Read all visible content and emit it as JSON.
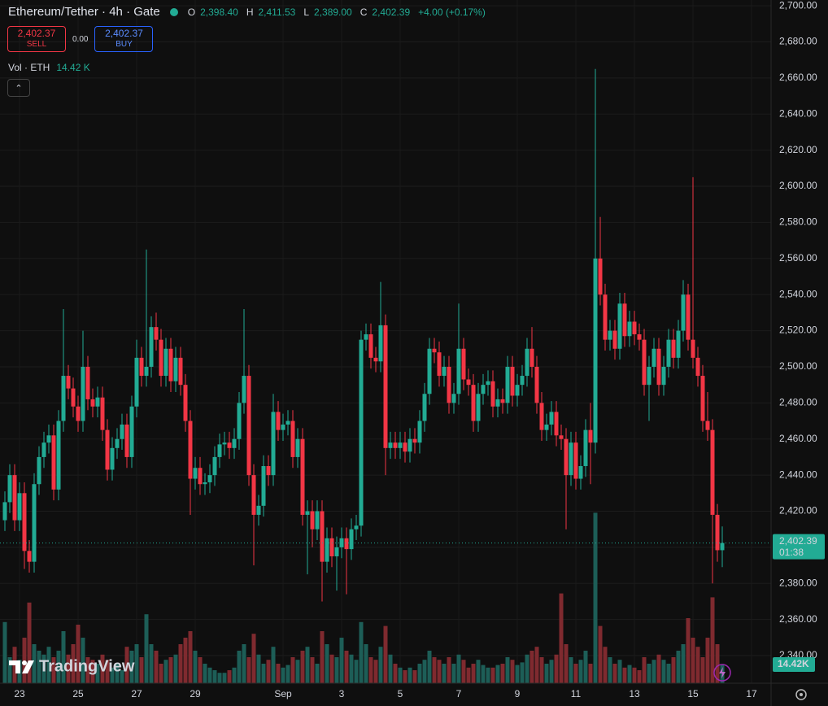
{
  "header": {
    "symbol": "Ethereum/Tether · 4h · Gate",
    "ohlc": [
      {
        "key": "O",
        "value": "2,398.40"
      },
      {
        "key": "H",
        "value": "2,411.53"
      },
      {
        "key": "L",
        "value": "2,389.00"
      },
      {
        "key": "C",
        "value": "2,402.39"
      }
    ],
    "change": "+4.00 (+0.17%)",
    "sell_price": "2,402.37",
    "sell": "SELL",
    "spread": "0.00",
    "buy_price": "2,402.37",
    "buy": "BUY",
    "volume_title": "Vol · ETH",
    "volume_value": "14.42 K"
  },
  "logo": "TradingView",
  "chart_data": {
    "type": "candlestick",
    "up_color": "#22ab94",
    "down_color": "#f23645",
    "up_volume_color": "#1d5e57",
    "down_volume_color": "#7f2a2f",
    "grid": true,
    "xlim": [
      -1,
      157
    ],
    "xticks": [
      {
        "value": 3,
        "label": "23"
      },
      {
        "value": 15,
        "label": "25"
      },
      {
        "value": 27,
        "label": "27"
      },
      {
        "value": 39,
        "label": "29"
      },
      {
        "value": 57,
        "label": "Sep"
      },
      {
        "value": 69,
        "label": "3"
      },
      {
        "value": 81,
        "label": "5"
      },
      {
        "value": 93,
        "label": "7"
      },
      {
        "value": 105,
        "label": "9"
      },
      {
        "value": 117,
        "label": "11"
      },
      {
        "value": 129,
        "label": "13"
      },
      {
        "value": 141,
        "label": "15"
      },
      {
        "value": 153,
        "label": "17"
      }
    ],
    "ylim": [
      2324.7,
      2703.2
    ],
    "yticks": [
      {
        "value": 2340,
        "label": "2,340.00"
      },
      {
        "value": 2360,
        "label": "2,360.00"
      },
      {
        "value": 2380,
        "label": "2,380.00"
      },
      {
        "value": 2400,
        "label": "2,400.00"
      },
      {
        "value": 2420,
        "label": "2,420.00"
      },
      {
        "value": 2440,
        "label": "2,440.00"
      },
      {
        "value": 2460,
        "label": "2,460.00"
      },
      {
        "value": 2480,
        "label": "2,480.00"
      },
      {
        "value": 2500,
        "label": "2,500.00"
      },
      {
        "value": 2520,
        "label": "2,520.00"
      },
      {
        "value": 2540,
        "label": "2,540.00"
      },
      {
        "value": 2560,
        "label": "2,560.00"
      },
      {
        "value": 2580,
        "label": "2,580.00"
      },
      {
        "value": 2600,
        "label": "2,600.00"
      },
      {
        "value": 2620,
        "label": "2,620.00"
      },
      {
        "value": 2640,
        "label": "2,640.00"
      },
      {
        "value": 2660,
        "label": "2,660.00"
      },
      {
        "value": 2680,
        "label": "2,680.00"
      },
      {
        "value": 2700,
        "label": "2,700.00"
      }
    ],
    "vlim": [
      0,
      150
    ],
    "price_tag": {
      "label": "2,402.39",
      "countdown": "01:38"
    },
    "volume_tag": "14.42K",
    "open": [
      2415,
      2425,
      2440,
      2415,
      2430,
      2398,
      2392,
      2435,
      2450,
      2458,
      2462,
      2432,
      2470,
      2495,
      2488,
      2478,
      2470,
      2500,
      2482,
      2478,
      2483,
      2465,
      2443,
      2455,
      2460,
      2468,
      2450,
      2478,
      2505,
      2495,
      2500,
      2522,
      2515,
      2495,
      2510,
      2492,
      2505,
      2490,
      2470,
      2438,
      2444,
      2435,
      2436,
      2440,
      2450,
      2457,
      2458,
      2455,
      2460,
      2480,
      2495,
      2440,
      2418,
      2423,
      2445,
      2440,
      2475,
      2465,
      2468,
      2470,
      2450,
      2460,
      2418,
      2420,
      2410,
      2420,
      2392,
      2405,
      2395,
      2400,
      2405,
      2399,
      2410,
      2412,
      2515,
      2518,
      2505,
      2503,
      2523,
      2455,
      2458,
      2455,
      2458,
      2453,
      2460,
      2458,
      2470,
      2485,
      2510,
      2508,
      2495,
      2500,
      2480,
      2485,
      2510,
      2493,
      2490,
      2470,
      2485,
      2490,
      2492,
      2478,
      2482,
      2480,
      2500,
      2484,
      2490,
      2495,
      2510,
      2500,
      2480,
      2465,
      2468,
      2475,
      2462,
      2460,
      2440,
      2458,
      2438,
      2445,
      2465,
      2458,
      2560,
      2540,
      2515,
      2520,
      2510,
      2535,
      2517,
      2525,
      2518,
      2515,
      2490,
      2500,
      2510,
      2490,
      2500,
      2515,
      2505,
      2520,
      2540,
      2515,
      2505,
      2495,
      2470,
      2465,
      2418,
      2398.4
    ],
    "high": [
      2431,
      2446,
      2446,
      2436,
      2436,
      2404,
      2441,
      2456,
      2464,
      2468,
      2468,
      2476,
      2532,
      2501,
      2494,
      2484,
      2520,
      2506,
      2488,
      2489,
      2489,
      2471,
      2461,
      2466,
      2474,
      2474,
      2484,
      2515,
      2511,
      2565,
      2528,
      2530,
      2521,
      2516,
      2516,
      2511,
      2511,
      2496,
      2476,
      2450,
      2450,
      2441,
      2446,
      2456,
      2463,
      2464,
      2464,
      2466,
      2486,
      2532,
      2501,
      2446,
      2429,
      2451,
      2451,
      2485,
      2481,
      2474,
      2476,
      2476,
      2466,
      2466,
      2426,
      2426,
      2426,
      2426,
      2411,
      2411,
      2406,
      2411,
      2411,
      2416,
      2418,
      2520,
      2524,
      2524,
      2511,
      2547,
      2529,
      2464,
      2464,
      2464,
      2464,
      2466,
      2466,
      2476,
      2491,
      2516,
      2516,
      2514,
      2506,
      2506,
      2491,
      2535,
      2516,
      2499,
      2496,
      2491,
      2496,
      2498,
      2498,
      2488,
      2488,
      2506,
      2506,
      2496,
      2501,
      2516,
      2522,
      2506,
      2486,
      2474,
      2481,
      2481,
      2468,
      2466,
      2464,
      2464,
      2451,
      2471,
      2480,
      2665,
      2583,
      2546,
      2526,
      2526,
      2541,
      2541,
      2531,
      2531,
      2524,
      2521,
      2506,
      2516,
      2516,
      2506,
      2521,
      2521,
      2526,
      2548,
      2546,
      2605,
      2511,
      2501,
      2486,
      2471,
      2424,
      2411.53
    ],
    "low": [
      2409,
      2419,
      2409,
      2409,
      2388,
      2386,
      2386,
      2429,
      2444,
      2452,
      2426,
      2426,
      2464,
      2482,
      2472,
      2464,
      2464,
      2476,
      2472,
      2472,
      2459,
      2437,
      2437,
      2449,
      2454,
      2444,
      2444,
      2472,
      2489,
      2489,
      2494,
      2509,
      2489,
      2489,
      2486,
      2486,
      2484,
      2464,
      2418,
      2432,
      2429,
      2429,
      2430,
      2434,
      2444,
      2451,
      2449,
      2449,
      2454,
      2474,
      2434,
      2390,
      2412,
      2417,
      2434,
      2434,
      2459,
      2459,
      2462,
      2444,
      2444,
      2412,
      2385,
      2400,
      2404,
      2370,
      2386,
      2389,
      2376,
      2394,
      2374,
      2393,
      2404,
      2406,
      2509,
      2499,
      2497,
      2497,
      2440,
      2449,
      2449,
      2449,
      2447,
      2447,
      2452,
      2452,
      2464,
      2479,
      2502,
      2489,
      2489,
      2474,
      2474,
      2479,
      2487,
      2484,
      2464,
      2464,
      2479,
      2484,
      2472,
      2472,
      2474,
      2474,
      2478,
      2478,
      2484,
      2489,
      2494,
      2474,
      2459,
      2459,
      2462,
      2456,
      2454,
      2410,
      2434,
      2432,
      2432,
      2439,
      2435,
      2452,
      2534,
      2509,
      2509,
      2504,
      2504,
      2511,
      2511,
      2512,
      2509,
      2484,
      2470,
      2494,
      2484,
      2484,
      2494,
      2499,
      2499,
      2514,
      2509,
      2499,
      2489,
      2464,
      2459,
      2380,
      2392,
      2389
    ],
    "close": [
      2425,
      2440,
      2415,
      2430,
      2398,
      2392,
      2435,
      2450,
      2458,
      2462,
      2432,
      2470,
      2495,
      2488,
      2478,
      2470,
      2500,
      2482,
      2478,
      2483,
      2465,
      2443,
      2455,
      2460,
      2468,
      2450,
      2478,
      2505,
      2495,
      2500,
      2522,
      2515,
      2495,
      2510,
      2492,
      2505,
      2490,
      2470,
      2438,
      2444,
      2435,
      2436,
      2440,
      2450,
      2457,
      2458,
      2455,
      2460,
      2480,
      2495,
      2440,
      2418,
      2423,
      2445,
      2440,
      2475,
      2465,
      2468,
      2470,
      2450,
      2460,
      2418,
      2420,
      2410,
      2420,
      2392,
      2405,
      2395,
      2400,
      2405,
      2399,
      2410,
      2412,
      2515,
      2518,
      2505,
      2503,
      2523,
      2455,
      2458,
      2455,
      2458,
      2453,
      2460,
      2458,
      2470,
      2485,
      2510,
      2508,
      2495,
      2500,
      2480,
      2485,
      2510,
      2493,
      2490,
      2470,
      2485,
      2490,
      2492,
      2478,
      2482,
      2480,
      2500,
      2484,
      2490,
      2495,
      2510,
      2500,
      2480,
      2465,
      2468,
      2475,
      2462,
      2460,
      2440,
      2458,
      2438,
      2445,
      2465,
      2458,
      2560,
      2540,
      2515,
      2520,
      2510,
      2535,
      2517,
      2525,
      2518,
      2515,
      2490,
      2500,
      2510,
      2490,
      2500,
      2515,
      2505,
      2520,
      2540,
      2515,
      2505,
      2495,
      2470,
      2465,
      2418,
      2398.4,
      2402.39
    ],
    "volume": [
      47,
      20,
      28,
      18,
      35,
      62,
      30,
      25,
      22,
      28,
      20,
      25,
      40,
      22,
      30,
      45,
      35,
      20,
      18,
      15,
      22,
      18,
      12,
      15,
      10,
      28,
      25,
      30,
      20,
      53,
      30,
      25,
      15,
      18,
      20,
      22,
      30,
      35,
      40,
      25,
      20,
      15,
      12,
      10,
      8,
      8,
      10,
      12,
      25,
      30,
      20,
      38,
      22,
      15,
      18,
      28,
      15,
      12,
      14,
      20,
      18,
      25,
      28,
      20,
      15,
      40,
      30,
      22,
      20,
      35,
      25,
      22,
      18,
      47,
      30,
      20,
      18,
      28,
      44,
      22,
      15,
      12,
      10,
      12,
      10,
      15,
      18,
      25,
      20,
      18,
      15,
      20,
      15,
      22,
      18,
      12,
      15,
      18,
      14,
      12,
      12,
      14,
      15,
      20,
      18,
      14,
      16,
      22,
      25,
      28,
      20,
      15,
      18,
      22,
      69,
      30,
      20,
      15,
      18,
      25,
      15,
      131,
      44,
      28,
      20,
      15,
      18,
      12,
      14,
      12,
      10,
      20,
      15,
      18,
      22,
      18,
      15,
      20,
      25,
      30,
      50,
      35,
      28,
      20,
      35,
      66,
      30,
      14.42
    ]
  }
}
